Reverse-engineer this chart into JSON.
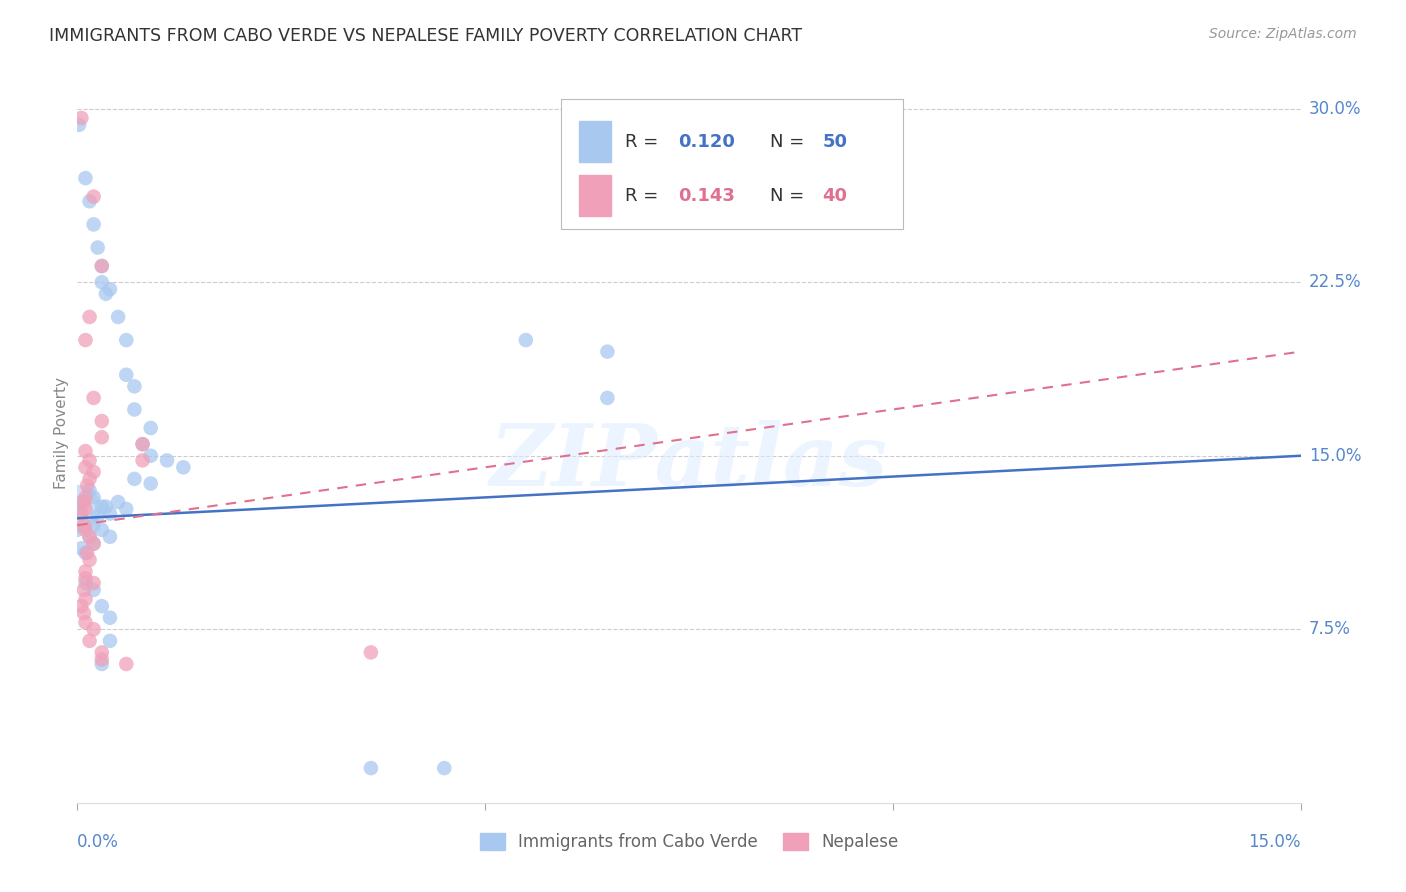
{
  "title": "IMMIGRANTS FROM CABO VERDE VS NEPALESE FAMILY POVERTY CORRELATION CHART",
  "source": "Source: ZipAtlas.com",
  "ylabel": "Family Poverty",
  "xmin": 0.0,
  "xmax": 0.15,
  "ymin": 0.0,
  "ymax": 0.32,
  "legend1_R": "0.120",
  "legend1_N": "50",
  "legend2_R": "0.143",
  "legend2_N": "40",
  "legend_label1": "Immigrants from Cabo Verde",
  "legend_label2": "Nepalese",
  "blue_color": "#A8C8F0",
  "pink_color": "#F0A0B8",
  "trend_blue": "#4472C4",
  "trend_pink": "#E07090",
  "blue_scatter": [
    [
      0.0002,
      0.293
    ],
    [
      0.001,
      0.27
    ],
    [
      0.0015,
      0.26
    ],
    [
      0.002,
      0.25
    ],
    [
      0.0025,
      0.24
    ],
    [
      0.003,
      0.232
    ],
    [
      0.003,
      0.225
    ],
    [
      0.004,
      0.222
    ],
    [
      0.0035,
      0.22
    ],
    [
      0.005,
      0.21
    ],
    [
      0.006,
      0.2
    ],
    [
      0.006,
      0.185
    ],
    [
      0.007,
      0.18
    ],
    [
      0.007,
      0.17
    ],
    [
      0.009,
      0.162
    ],
    [
      0.055,
      0.2
    ],
    [
      0.065,
      0.195
    ],
    [
      0.065,
      0.175
    ],
    [
      0.008,
      0.155
    ],
    [
      0.009,
      0.15
    ],
    [
      0.011,
      0.148
    ],
    [
      0.013,
      0.145
    ],
    [
      0.007,
      0.14
    ],
    [
      0.009,
      0.138
    ],
    [
      0.0015,
      0.135
    ],
    [
      0.002,
      0.132
    ],
    [
      0.003,
      0.128
    ],
    [
      0.004,
      0.125
    ],
    [
      0.0035,
      0.128
    ],
    [
      0.0025,
      0.124
    ],
    [
      0.002,
      0.12
    ],
    [
      0.003,
      0.118
    ],
    [
      0.004,
      0.115
    ],
    [
      0.0015,
      0.115
    ],
    [
      0.002,
      0.112
    ],
    [
      0.0005,
      0.13
    ],
    [
      0.0,
      0.127
    ],
    [
      0.005,
      0.13
    ],
    [
      0.006,
      0.127
    ],
    [
      0.0,
      0.118
    ],
    [
      0.0005,
      0.11
    ],
    [
      0.001,
      0.108
    ],
    [
      0.001,
      0.095
    ],
    [
      0.002,
      0.092
    ],
    [
      0.003,
      0.085
    ],
    [
      0.004,
      0.08
    ],
    [
      0.004,
      0.07
    ],
    [
      0.003,
      0.06
    ],
    [
      0.036,
      0.015
    ],
    [
      0.045,
      0.015
    ]
  ],
  "blue_bubble": [
    0.0,
    0.127,
    1200
  ],
  "pink_scatter": [
    [
      0.0005,
      0.296
    ],
    [
      0.002,
      0.262
    ],
    [
      0.003,
      0.232
    ],
    [
      0.0015,
      0.21
    ],
    [
      0.001,
      0.2
    ],
    [
      0.002,
      0.175
    ],
    [
      0.003,
      0.165
    ],
    [
      0.003,
      0.158
    ],
    [
      0.001,
      0.152
    ],
    [
      0.0015,
      0.148
    ],
    [
      0.001,
      0.145
    ],
    [
      0.002,
      0.143
    ],
    [
      0.0015,
      0.14
    ],
    [
      0.0012,
      0.137
    ],
    [
      0.001,
      0.132
    ],
    [
      0.0008,
      0.13
    ],
    [
      0.001,
      0.127
    ],
    [
      0.0005,
      0.125
    ],
    [
      0.0008,
      0.12
    ],
    [
      0.001,
      0.118
    ],
    [
      0.0015,
      0.115
    ],
    [
      0.002,
      0.112
    ],
    [
      0.0012,
      0.108
    ],
    [
      0.0015,
      0.105
    ],
    [
      0.001,
      0.1
    ],
    [
      0.001,
      0.097
    ],
    [
      0.002,
      0.095
    ],
    [
      0.0008,
      0.092
    ],
    [
      0.001,
      0.088
    ],
    [
      0.0005,
      0.085
    ],
    [
      0.0008,
      0.082
    ],
    [
      0.001,
      0.078
    ],
    [
      0.002,
      0.075
    ],
    [
      0.0015,
      0.07
    ],
    [
      0.003,
      0.065
    ],
    [
      0.003,
      0.062
    ],
    [
      0.006,
      0.06
    ],
    [
      0.008,
      0.155
    ],
    [
      0.008,
      0.148
    ],
    [
      0.036,
      0.065
    ]
  ],
  "blue_trend_x": [
    0.0,
    0.15
  ],
  "blue_trend_y": [
    0.123,
    0.15
  ],
  "pink_trend_x": [
    0.0,
    0.15
  ],
  "pink_trend_y": [
    0.12,
    0.195
  ],
  "watermark": "ZIPatlas",
  "background_color": "#FFFFFF",
  "grid_color": "#CCCCCC"
}
